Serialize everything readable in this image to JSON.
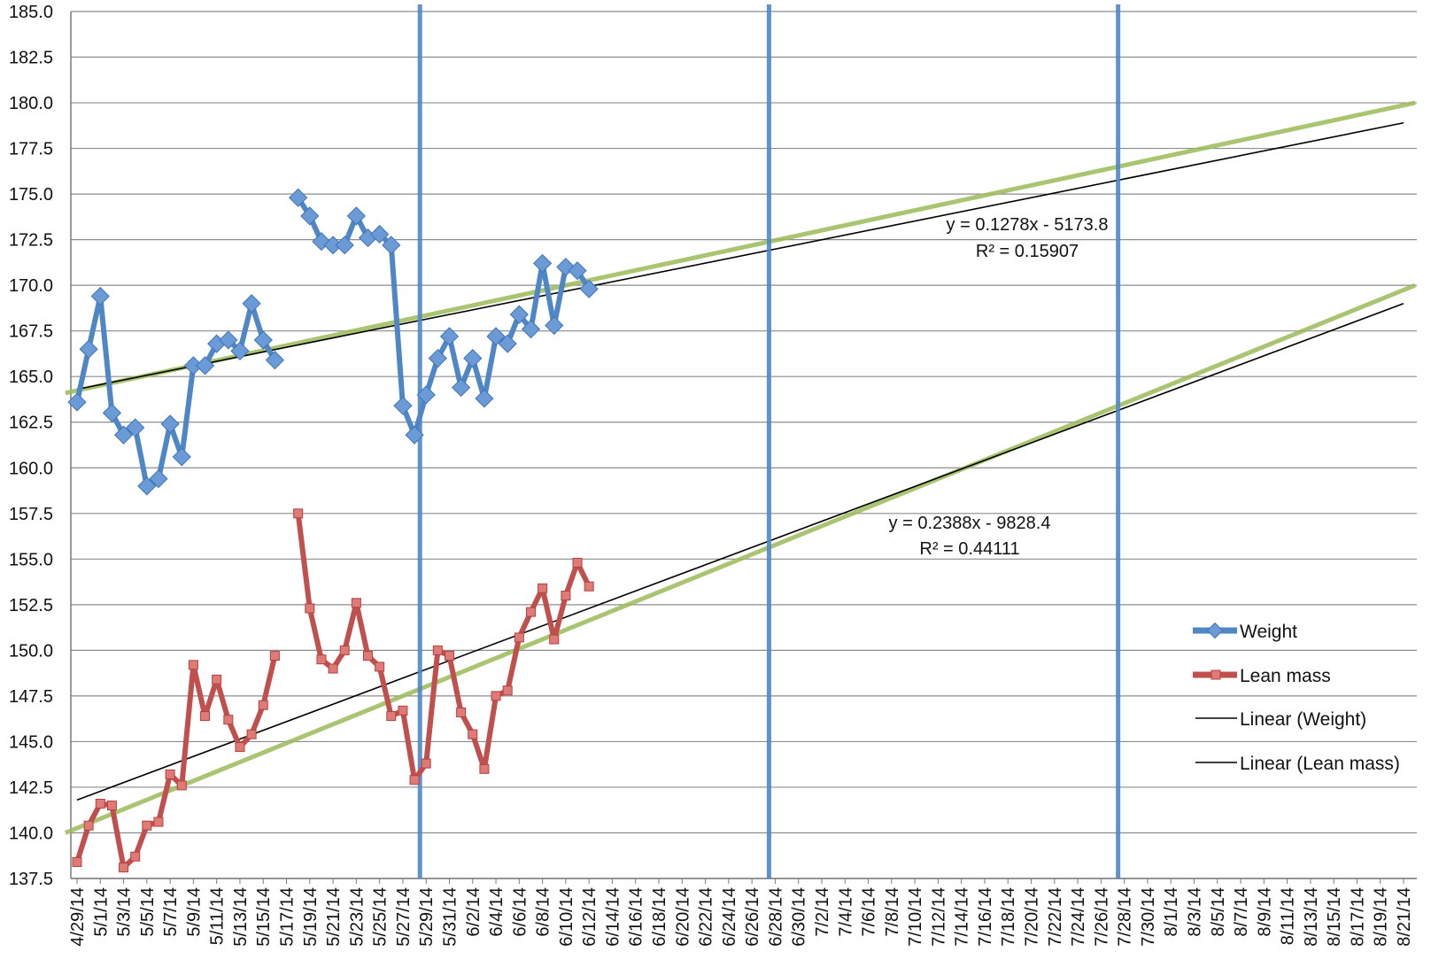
{
  "chart_data": {
    "type": "line",
    "x_type": "date",
    "x_range": [
      "2014-04-29",
      "2014-08-21"
    ],
    "x_tick_labels": [
      "4/29/14",
      "5/1/14",
      "5/3/14",
      "5/5/14",
      "5/7/14",
      "5/9/14",
      "5/11/14",
      "5/13/14",
      "5/15/14",
      "5/17/14",
      "5/19/14",
      "5/21/14",
      "5/23/14",
      "5/25/14",
      "5/27/14",
      "5/29/14",
      "5/31/14",
      "6/2/14",
      "6/4/14",
      "6/6/14",
      "6/8/14",
      "6/10/14",
      "6/12/14",
      "6/14/14",
      "6/16/14",
      "6/18/14",
      "6/20/14",
      "6/22/14",
      "6/24/14",
      "6/26/14",
      "6/28/14",
      "6/30/14",
      "7/2/14",
      "7/4/14",
      "7/6/14",
      "7/8/14",
      "7/10/14",
      "7/12/14",
      "7/14/14",
      "7/16/14",
      "7/18/14",
      "7/20/14",
      "7/22/14",
      "7/24/14",
      "7/26/14",
      "7/28/14",
      "7/30/14",
      "8/1/14",
      "8/3/14",
      "8/5/14",
      "8/7/14",
      "8/9/14",
      "8/11/14",
      "8/13/14",
      "8/15/14",
      "8/17/14",
      "8/19/14",
      "8/21/14"
    ],
    "ylim": [
      137.5,
      185.0
    ],
    "y_tick_labels": [
      "137.5",
      "140.0",
      "142.5",
      "145.0",
      "147.5",
      "150.0",
      "152.5",
      "155.0",
      "157.5",
      "160.0",
      "162.5",
      "165.0",
      "167.5",
      "170.0",
      "172.5",
      "175.0",
      "177.5",
      "180.0",
      "182.5",
      "185.0"
    ],
    "grid": "horizontal",
    "legend_position": "right",
    "series": [
      {
        "name": "Weight",
        "color": "#4f86c6",
        "marker": "diamond",
        "segments": [
          [
            [
              "2014-04-29",
              163.6
            ],
            [
              "2014-04-30",
              166.5
            ],
            [
              "2014-05-01",
              169.4
            ],
            [
              "2014-05-02",
              163.0
            ],
            [
              "2014-05-03",
              161.8
            ],
            [
              "2014-05-04",
              162.2
            ],
            [
              "2014-05-05",
              159.0
            ],
            [
              "2014-05-06",
              159.4
            ],
            [
              "2014-05-07",
              162.4
            ],
            [
              "2014-05-08",
              160.6
            ],
            [
              "2014-05-09",
              165.6
            ],
            [
              "2014-05-10",
              165.6
            ],
            [
              "2014-05-11",
              166.8
            ],
            [
              "2014-05-12",
              167.0
            ],
            [
              "2014-05-13",
              166.4
            ],
            [
              "2014-05-14",
              169.0
            ],
            [
              "2014-05-15",
              167.0
            ],
            [
              "2014-05-16",
              165.9
            ]
          ],
          [
            [
              "2014-05-18",
              174.8
            ],
            [
              "2014-05-19",
              173.8
            ],
            [
              "2014-05-20",
              172.4
            ],
            [
              "2014-05-21",
              172.2
            ],
            [
              "2014-05-22",
              172.2
            ],
            [
              "2014-05-23",
              173.8
            ],
            [
              "2014-05-24",
              172.6
            ],
            [
              "2014-05-25",
              172.8
            ],
            [
              "2014-05-26",
              172.2
            ],
            [
              "2014-05-27",
              163.4
            ],
            [
              "2014-05-28",
              161.8
            ],
            [
              "2014-05-29",
              164.0
            ],
            [
              "2014-05-30",
              166.0
            ],
            [
              "2014-05-31",
              167.2
            ],
            [
              "2014-06-01",
              164.4
            ],
            [
              "2014-06-02",
              166.0
            ],
            [
              "2014-06-03",
              163.8
            ],
            [
              "2014-06-04",
              167.2
            ],
            [
              "2014-06-05",
              166.8
            ],
            [
              "2014-06-06",
              168.4
            ],
            [
              "2014-06-07",
              167.6
            ],
            [
              "2014-06-08",
              171.2
            ],
            [
              "2014-06-09",
              167.8
            ],
            [
              "2014-06-10",
              171.0
            ],
            [
              "2014-06-11",
              170.8
            ],
            [
              "2014-06-12",
              169.8
            ]
          ]
        ]
      },
      {
        "name": "Lean mass",
        "color": "#c0504d",
        "marker": "square",
        "segments": [
          [
            [
              "2014-04-29",
              138.4
            ],
            [
              "2014-04-30",
              140.4
            ],
            [
              "2014-05-01",
              141.6
            ],
            [
              "2014-05-02",
              141.5
            ],
            [
              "2014-05-03",
              138.1
            ],
            [
              "2014-05-04",
              138.7
            ],
            [
              "2014-05-05",
              140.4
            ],
            [
              "2014-05-06",
              140.6
            ],
            [
              "2014-05-07",
              143.2
            ],
            [
              "2014-05-08",
              142.6
            ],
            [
              "2014-05-09",
              149.2
            ],
            [
              "2014-05-10",
              146.4
            ],
            [
              "2014-05-11",
              148.4
            ],
            [
              "2014-05-12",
              146.2
            ],
            [
              "2014-05-13",
              144.7
            ],
            [
              "2014-05-14",
              145.4
            ],
            [
              "2014-05-15",
              147.0
            ],
            [
              "2014-05-16",
              149.7
            ]
          ],
          [
            [
              "2014-05-18",
              157.5
            ],
            [
              "2014-05-19",
              152.3
            ],
            [
              "2014-05-20",
              149.5
            ],
            [
              "2014-05-21",
              149.0
            ],
            [
              "2014-05-22",
              150.0
            ],
            [
              "2014-05-23",
              152.6
            ],
            [
              "2014-05-24",
              149.7
            ],
            [
              "2014-05-25",
              149.1
            ],
            [
              "2014-05-26",
              146.4
            ],
            [
              "2014-05-27",
              146.7
            ],
            [
              "2014-05-28",
              142.9
            ],
            [
              "2014-05-29",
              143.8
            ],
            [
              "2014-05-30",
              150.0
            ],
            [
              "2014-05-31",
              149.7
            ],
            [
              "2014-06-01",
              146.6
            ],
            [
              "2014-06-02",
              145.4
            ],
            [
              "2014-06-03",
              143.5
            ],
            [
              "2014-06-04",
              147.5
            ],
            [
              "2014-06-05",
              147.8
            ],
            [
              "2014-06-06",
              150.7
            ],
            [
              "2014-06-07",
              152.1
            ],
            [
              "2014-06-08",
              153.4
            ],
            [
              "2014-06-09",
              150.6
            ],
            [
              "2014-06-10",
              153.0
            ],
            [
              "2014-06-11",
              154.8
            ],
            [
              "2014-06-12",
              153.5
            ]
          ]
        ]
      }
    ],
    "trendlines": [
      {
        "name": "Linear (Weight)",
        "color": "#000000",
        "points": [
          [
            "2014-04-29",
            164.3
          ],
          [
            "2014-08-21",
            178.9
          ]
        ],
        "equation": "y = 0.1278x - 5173.8",
        "r_squared": "R² = 0.15907"
      },
      {
        "name": "Linear (Lean mass)",
        "color": "#000000",
        "points": [
          [
            "2014-04-29",
            141.8
          ],
          [
            "2014-08-21",
            169.0
          ]
        ],
        "equation": "y = 0.2388x - 9828.4",
        "r_squared": "R² = 0.44111"
      }
    ],
    "projection_lines": {
      "color": "#9bbb59",
      "lines": [
        [
          [
            "2014-04-28",
            164.1
          ],
          [
            "2014-08-22",
            180.0
          ]
        ],
        [
          [
            "2014-04-28",
            140.0
          ],
          [
            "2014-08-22",
            170.0
          ]
        ]
      ]
    },
    "vertical_markers": {
      "color": "#4f86c6",
      "dates": [
        "2014-05-29",
        "2014-06-28",
        "2014-07-28"
      ]
    }
  }
}
